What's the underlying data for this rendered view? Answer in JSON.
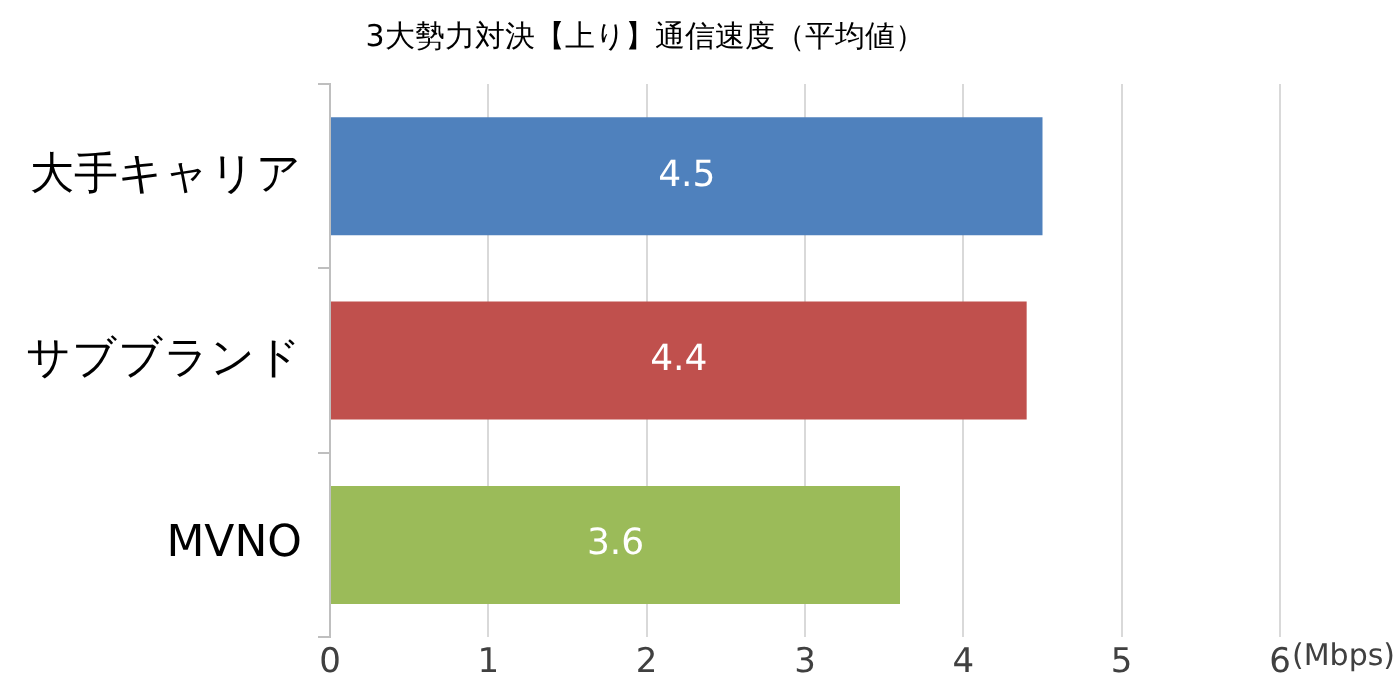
{
  "chart_data": {
    "type": "bar",
    "orientation": "horizontal",
    "title": "3大勢力対決【上り】通信速度（平均値）",
    "xlabel": "(Mbps)",
    "categories": [
      "大手キャリア",
      "サブブランド",
      "MVNO"
    ],
    "values": [
      4.5,
      4.4,
      3.6
    ],
    "colors": [
      "#4f81bd",
      "#c0504d",
      "#9bbb59"
    ],
    "xlim": [
      0,
      6
    ],
    "xticks": [
      0,
      1,
      2,
      3,
      4,
      5,
      6
    ],
    "grid": "x",
    "data_labels": true,
    "legend": false
  }
}
